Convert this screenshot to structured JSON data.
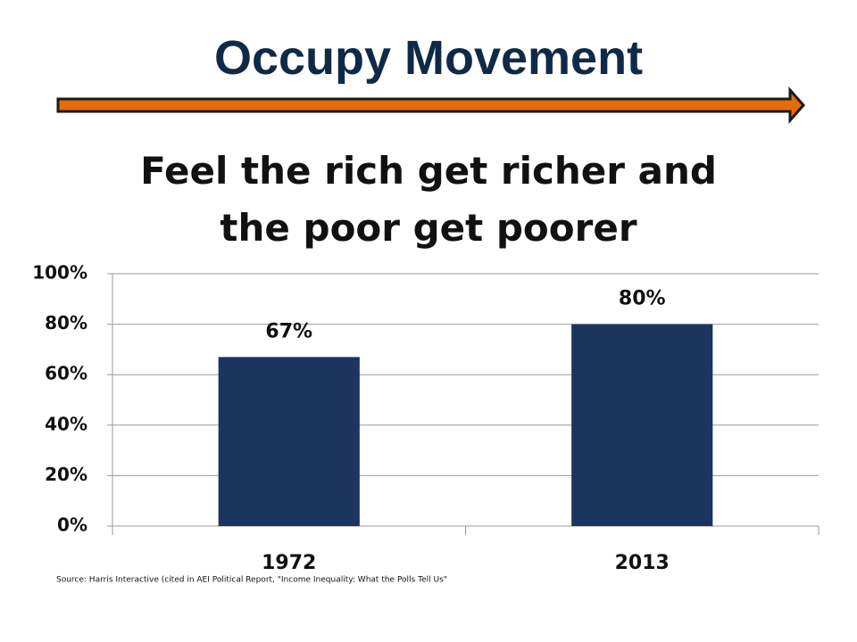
{
  "header": {
    "title": "Occupy Movement"
  },
  "chart_data": {
    "type": "bar",
    "title": "Feel the rich get richer and the poor get poorer",
    "categories": [
      "1972",
      "2013"
    ],
    "values": [
      67,
      80
    ],
    "value_labels": [
      "67%",
      "80%"
    ],
    "color": "#1c355e",
    "ylim": [
      0,
      100
    ],
    "yticks": [
      {
        "value": 0,
        "label": "0%"
      },
      {
        "value": 20,
        "label": "20%"
      },
      {
        "value": 40,
        "label": "40%"
      },
      {
        "value": 60,
        "label": "60%"
      },
      {
        "value": 80,
        "label": "80%"
      },
      {
        "value": 100,
        "label": "100%"
      }
    ],
    "grid": true,
    "source": "Source: Harris Interactive (cited in AEI Political Report, \"Income Inequality: What the Polls Tell Us\""
  }
}
